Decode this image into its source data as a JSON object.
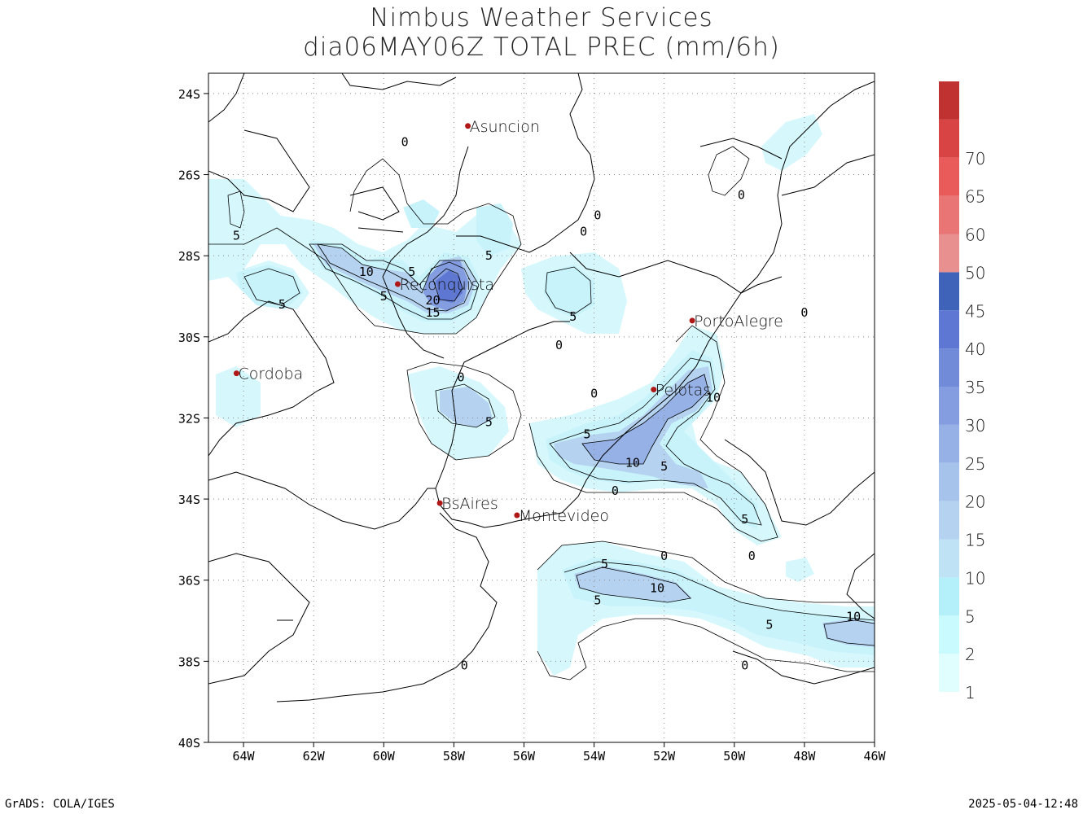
{
  "title": {
    "line1": "Nimbus Weather Services",
    "line2": "dia06MAY06Z TOTAL PREC (mm/6h)"
  },
  "axes": {
    "lat_labels": [
      "24S",
      "26S",
      "28S",
      "30S",
      "32S",
      "34S",
      "36S",
      "38S",
      "40S"
    ],
    "lat_values": [
      -24.5,
      -26.5,
      -28.5,
      -30.5,
      -32.5,
      -34.5,
      -36.5,
      -38.5,
      -40.5
    ],
    "lon_labels": [
      "64W",
      "62W",
      "60W",
      "58W",
      "56W",
      "54W",
      "52W",
      "50W",
      "48W",
      "46W"
    ],
    "lon_values": [
      -64,
      -62,
      -60,
      -58,
      -56,
      -54,
      -52,
      -50,
      -48,
      -46
    ],
    "lon_range": [
      -65,
      -46
    ],
    "lat_range": [
      -40.5,
      -24
    ]
  },
  "cities": [
    {
      "name": "Asuncion",
      "lon": -57.6,
      "lat": -25.3
    },
    {
      "name": "Reconquista",
      "lon": -59.6,
      "lat": -29.2
    },
    {
      "name": "PortoAlegre",
      "lon": -51.2,
      "lat": -30.1
    },
    {
      "name": "Cordoba",
      "lon": -64.2,
      "lat": -31.4
    },
    {
      "name": "Pelotas",
      "lon": -52.3,
      "lat": -31.8
    },
    {
      "name": "BsAires",
      "lon": -58.4,
      "lat": -34.6
    },
    {
      "name": "Montevideo",
      "lon": -56.2,
      "lat": -34.9
    }
  ],
  "contour_labels": [
    {
      "t": "0",
      "lon": -59.4,
      "lat": -25.7
    },
    {
      "t": "0",
      "lon": -55.0,
      "lat": -30.7
    },
    {
      "t": "0",
      "lon": -57.8,
      "lat": -31.5
    },
    {
      "t": "0",
      "lon": -54.0,
      "lat": -31.9
    },
    {
      "t": "0",
      "lon": -53.9,
      "lat": -27.5
    },
    {
      "t": "0",
      "lon": -54.3,
      "lat": -27.9
    },
    {
      "t": "0",
      "lon": -49.8,
      "lat": -27.0
    },
    {
      "t": "0",
      "lon": -48.0,
      "lat": -29.9
    },
    {
      "t": "0",
      "lon": -53.4,
      "lat": -34.3
    },
    {
      "t": "0",
      "lon": -52.0,
      "lat": -35.9
    },
    {
      "t": "0",
      "lon": -49.5,
      "lat": -35.9
    },
    {
      "t": "0",
      "lon": -49.7,
      "lat": -38.6
    },
    {
      "t": "0",
      "lon": -57.7,
      "lat": -38.6
    },
    {
      "t": "5",
      "lon": -64.2,
      "lat": -28.0
    },
    {
      "t": "5",
      "lon": -62.9,
      "lat": -29.7
    },
    {
      "t": "5",
      "lon": -60.0,
      "lat": -29.5
    },
    {
      "t": "5",
      "lon": -59.2,
      "lat": -28.9
    },
    {
      "t": "5",
      "lon": -57.0,
      "lat": -28.5
    },
    {
      "t": "5",
      "lon": -54.6,
      "lat": -30.0
    },
    {
      "t": "5",
      "lon": -57.0,
      "lat": -32.6
    },
    {
      "t": "5",
      "lon": -54.2,
      "lat": -32.9
    },
    {
      "t": "5",
      "lon": -52.0,
      "lat": -33.7
    },
    {
      "t": "5",
      "lon": -49.7,
      "lat": -35.0
    },
    {
      "t": "5",
      "lon": -53.7,
      "lat": -36.1
    },
    {
      "t": "5",
      "lon": -53.9,
      "lat": -37.0
    },
    {
      "t": "5",
      "lon": -49.0,
      "lat": -37.6
    },
    {
      "t": "10",
      "lon": -60.5,
      "lat": -28.9
    },
    {
      "t": "10",
      "lon": -52.9,
      "lat": -33.6
    },
    {
      "t": "10",
      "lon": -52.2,
      "lat": -36.7
    },
    {
      "t": "10",
      "lon": -50.6,
      "lat": -32.0
    },
    {
      "t": "10",
      "lon": -46.6,
      "lat": -37.4
    },
    {
      "t": "20",
      "lon": -58.6,
      "lat": -29.6
    },
    {
      "t": "15",
      "lon": -58.6,
      "lat": -29.9
    }
  ],
  "colorbar": {
    "labels": [
      "1",
      "2",
      "5",
      "10",
      "15",
      "20",
      "25",
      "30",
      "35",
      "40",
      "45",
      "50",
      "60",
      "65",
      "70"
    ],
    "colors": [
      "#e0fefe",
      "#c8fafe",
      "#b4f0fa",
      "#bfe3f5",
      "#b5d3f0",
      "#a6c3ec",
      "#95b1e6",
      "#839de0",
      "#718bd9",
      "#5e77d2",
      "#3e63b8",
      "#e89090",
      "#e97575",
      "#e95b5b",
      "#d84343",
      "#c03232"
    ]
  },
  "footer": {
    "left": "GrADS: COLA/IGES",
    "right": "2025-05-04-12:48"
  }
}
